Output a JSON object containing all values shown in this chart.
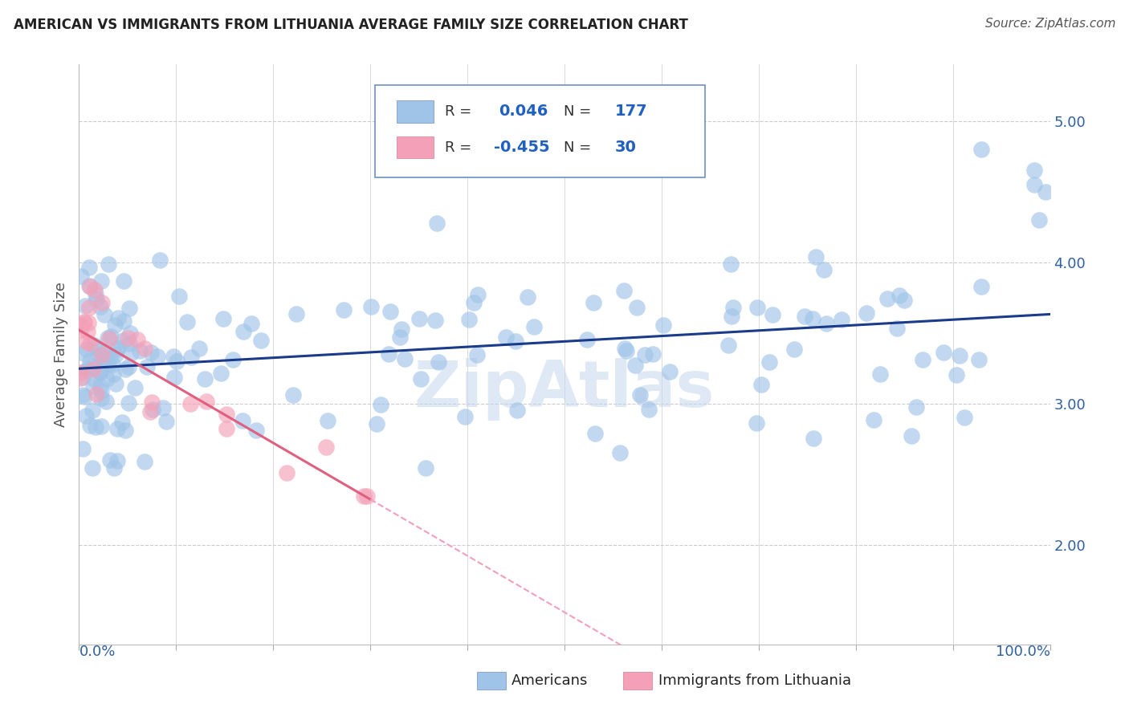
{
  "title": "AMERICAN VS IMMIGRANTS FROM LITHUANIA AVERAGE FAMILY SIZE CORRELATION CHART",
  "source": "Source: ZipAtlas.com",
  "ylabel": "Average Family Size",
  "watermark": "ZipAtlas",
  "ylim": [
    1.3,
    5.4
  ],
  "xlim": [
    0.0,
    1.0
  ],
  "yticks": [
    2.0,
    3.0,
    4.0,
    5.0
  ],
  "background_color": "#ffffff",
  "grid_color": "#cccccc",
  "blue_dot_color": "#a0c4e8",
  "pink_dot_color": "#f4a0b8",
  "blue_line_color": "#1a3a8a",
  "pink_line_color": "#e06080",
  "dashed_line_color": "#f0a0b8",
  "legend_box_color": "#e8eff8",
  "legend_border_color": "#7090c0",
  "title_color": "#222222",
  "source_color": "#555555",
  "axis_label_color": "#3060a0",
  "ylabel_color": "#555555",
  "R_value_color": "#2060c0",
  "N_value_color": "#2060c0"
}
